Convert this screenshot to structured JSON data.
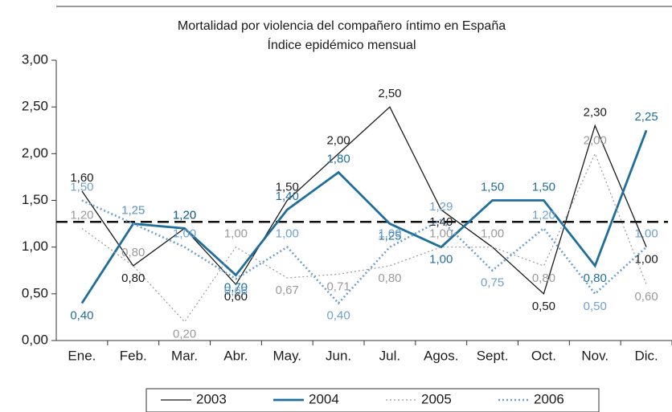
{
  "chart_data": {
    "type": "line",
    "title": "Mortalidad por violencia del compañero íntimo en España",
    "subtitle": "Índice epidémico mensual",
    "categories": [
      "Ene.",
      "Feb.",
      "Mar.",
      "Abr.",
      "May.",
      "Jun.",
      "Jul.",
      "Agos.",
      "Sept.",
      "Oct.",
      "Nov.",
      "Dic."
    ],
    "ylim": [
      0,
      3
    ],
    "yticks": [
      {
        "value": 0,
        "label": "0,00"
      },
      {
        "value": 0.5,
        "label": "0,50"
      },
      {
        "value": 1,
        "label": "1,00"
      },
      {
        "value": 1.5,
        "label": "1,50"
      },
      {
        "value": 2,
        "label": "2,00"
      },
      {
        "value": 2.5,
        "label": "2,50"
      },
      {
        "value": 3,
        "label": "3,00"
      }
    ],
    "reference_line": 1.27,
    "series": [
      {
        "name": "2003",
        "color": "#1a1a1a",
        "line_style": "solid",
        "line_width": 1.3,
        "values": [
          1.6,
          0.8,
          1.2,
          0.6,
          1.5,
          2.0,
          2.5,
          1.4,
          1.0,
          0.5,
          2.3,
          1.0
        ],
        "value_labels": [
          "1,60",
          "0,80",
          "1,20",
          "0,60",
          "1,50",
          "2,00",
          "2,50",
          "1,40",
          null,
          "0,50",
          "2,30",
          "1,00"
        ]
      },
      {
        "name": "2004",
        "color": "#1f6e9c",
        "line_style": "solid",
        "line_width": 2.8,
        "values": [
          0.4,
          1.25,
          1.2,
          0.7,
          1.4,
          1.8,
          1.25,
          1.0,
          1.5,
          1.5,
          0.8,
          2.25
        ],
        "value_labels": [
          "0,40",
          "1,25",
          "1,20",
          "0,70",
          "1,40",
          "1,80",
          "1,25",
          "1,00",
          "1,50",
          "1,50",
          "0,80",
          "2,25"
        ]
      },
      {
        "name": "2005",
        "color": "#9a9a9a",
        "line_style": "dotted",
        "line_width": 1.2,
        "values": [
          1.2,
          0.8,
          0.2,
          1.0,
          0.67,
          0.71,
          0.8,
          1.0,
          1.0,
          0.8,
          2.0,
          0.6
        ],
        "value_labels": [
          "1,20",
          "0,80",
          "0,20",
          "1,00",
          "0,67",
          "0,71",
          "0,80",
          "1,00",
          "1,00",
          "0,80",
          "2,00",
          "0,60"
        ]
      },
      {
        "name": "2006",
        "color": "#6fa0cf",
        "line_style": "dotted",
        "line_width": 2.6,
        "values": [
          1.5,
          1.25,
          1.0,
          0.66,
          1.0,
          0.4,
          1.0,
          1.29,
          0.75,
          1.2,
          0.5,
          1.0
        ],
        "value_labels": [
          "1,50",
          "1,25",
          "1,00",
          "0,66",
          "1,00",
          "0,40",
          "1,00",
          "1,29",
          "0,75",
          "1,20",
          "0,50",
          "1,00"
        ]
      }
    ]
  }
}
